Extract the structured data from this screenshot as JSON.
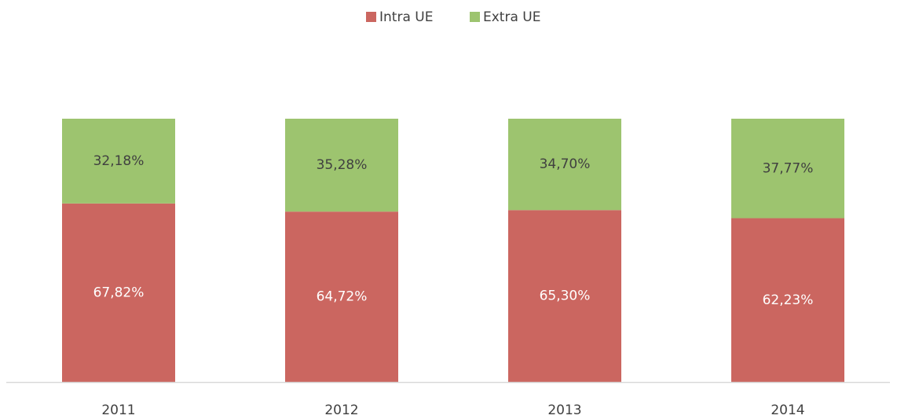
{
  "chart_data": {
    "type": "stacked_bar",
    "categories": [
      "2011",
      "2012",
      "2013",
      "2014"
    ],
    "series": [
      {
        "name": "Intra UE",
        "color": "#cb6660",
        "values": [
          67.82,
          64.72,
          65.3,
          62.23
        ],
        "value_labels": [
          "67,82%",
          "64,72%",
          "65,30%",
          "62,23%"
        ],
        "label_color": "#ffffff"
      },
      {
        "name": "Extra UE",
        "color": "#9dc46f",
        "values": [
          32.18,
          35.28,
          34.7,
          37.77
        ],
        "value_labels": [
          "32,18%",
          "35,28%",
          "34,70%",
          "37,77%"
        ],
        "label_color": "#404040"
      }
    ],
    "ylim": [
      0,
      100
    ],
    "legend": "top"
  }
}
